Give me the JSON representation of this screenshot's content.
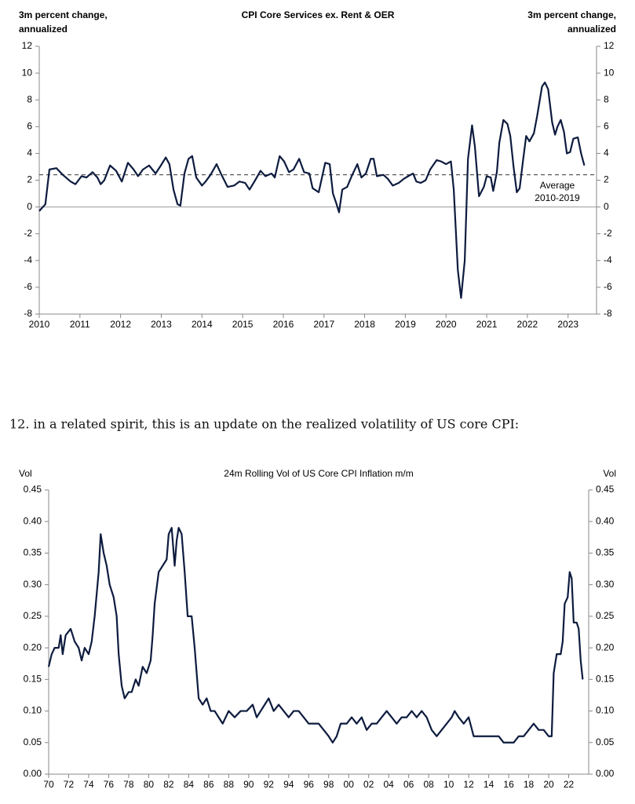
{
  "chart_data": [
    {
      "type": "line",
      "title": "CPI Core Services ex. Rent & OER",
      "ylabel": [
        "3m percent change,",
        "annualized"
      ],
      "y2label": [
        "3m percent change,",
        "annualized"
      ],
      "x": [
        2010.0,
        2010.15,
        2010.25,
        2010.42,
        2010.58,
        2010.77,
        2010.89,
        2011.04,
        2011.16,
        2011.31,
        2011.43,
        2011.51,
        2011.6,
        2011.74,
        2011.89,
        2012.03,
        2012.18,
        2012.32,
        2012.43,
        2012.55,
        2012.7,
        2012.86,
        2012.99,
        2013.11,
        2013.2,
        2013.3,
        2013.4,
        2013.47,
        2013.57,
        2013.67,
        2013.76,
        2013.86,
        2014.0,
        2014.09,
        2014.21,
        2014.36,
        2014.48,
        2014.63,
        2014.79,
        2014.92,
        2015.06,
        2015.17,
        2015.29,
        2015.44,
        2015.56,
        2015.71,
        2015.79,
        2015.91,
        2016.02,
        2016.14,
        2016.25,
        2016.39,
        2016.51,
        2016.64,
        2016.72,
        2016.87,
        2017.03,
        2017.14,
        2017.22,
        2017.3,
        2017.37,
        2017.45,
        2017.57,
        2017.68,
        2017.82,
        2017.92,
        2018.03,
        2018.15,
        2018.22,
        2018.3,
        2018.46,
        2018.57,
        2018.69,
        2018.84,
        2018.96,
        2019.07,
        2019.19,
        2019.27,
        2019.38,
        2019.5,
        2019.61,
        2019.77,
        2019.88,
        2020.0,
        2020.12,
        2020.19,
        2020.29,
        2020.37,
        2020.46,
        2020.54,
        2020.64,
        2020.71,
        2020.81,
        2020.93,
        2021.0,
        2021.1,
        2021.16,
        2021.25,
        2021.31,
        2021.41,
        2021.51,
        2021.58,
        2021.66,
        2021.74,
        2021.81,
        2021.89,
        2021.97,
        2022.05,
        2022.16,
        2022.24,
        2022.36,
        2022.43,
        2022.51,
        2022.61,
        2022.68,
        2022.74,
        2022.82,
        2022.9,
        2022.97,
        2023.05,
        2023.13,
        2023.24,
        2023.32,
        2023.4
      ],
      "values": [
        -0.3,
        0.2,
        2.8,
        2.9,
        2.4,
        1.9,
        1.7,
        2.3,
        2.2,
        2.6,
        2.2,
        1.7,
        2.0,
        3.1,
        2.7,
        1.9,
        3.3,
        2.8,
        2.3,
        2.8,
        3.1,
        2.5,
        3.1,
        3.7,
        3.2,
        1.3,
        0.2,
        0.1,
        2.5,
        3.6,
        3.8,
        2.2,
        1.6,
        1.9,
        2.4,
        3.2,
        2.4,
        1.5,
        1.6,
        1.9,
        1.8,
        1.3,
        1.9,
        2.7,
        2.3,
        2.5,
        2.2,
        3.8,
        3.4,
        2.6,
        2.8,
        3.6,
        2.6,
        2.5,
        1.4,
        1.1,
        3.3,
        3.2,
        1.0,
        0.3,
        -0.4,
        1.3,
        1.5,
        2.3,
        3.2,
        2.2,
        2.5,
        3.6,
        3.6,
        2.3,
        2.4,
        2.1,
        1.6,
        1.8,
        2.1,
        2.3,
        2.5,
        1.9,
        1.8,
        2.0,
        2.8,
        3.5,
        3.4,
        3.2,
        3.4,
        1.3,
        -4.7,
        -6.8,
        -4.0,
        3.6,
        6.1,
        4.5,
        0.8,
        1.5,
        2.3,
        2.2,
        1.2,
        2.6,
        4.8,
        6.5,
        6.2,
        5.3,
        3.0,
        1.1,
        1.4,
        3.4,
        5.3,
        4.9,
        5.5,
        6.8,
        9.0,
        9.3,
        8.8,
        6.3,
        5.4,
        6.0,
        6.5,
        5.6,
        4.0,
        4.1,
        5.1,
        5.2,
        4.0,
        3.1
      ],
      "color": "#0d1b3e",
      "xlim": [
        2010,
        2023.7
      ],
      "xticks": [
        2010,
        2011,
        2012,
        2013,
        2014,
        2015,
        2016,
        2017,
        2018,
        2019,
        2020,
        2021,
        2022,
        2023
      ],
      "ylim": [
        -8,
        12
      ],
      "yticks": [
        -8,
        -6,
        -4,
        -2,
        0,
        2,
        4,
        6,
        8,
        10,
        12
      ],
      "y2lim": [
        -8,
        12
      ],
      "y2ticks": [
        -8,
        -6,
        -4,
        -2,
        0,
        2,
        4,
        6,
        8,
        10,
        12
      ],
      "average": 2.4,
      "average_label": [
        "Average",
        "2010-2019"
      ]
    },
    {
      "type": "line",
      "title": "24m Rolling Vol of US Core CPI Inflation m/m",
      "ylabel": [
        "Vol"
      ],
      "y2label": [
        "Vol"
      ],
      "x": [
        1970.0,
        1970.3,
        1970.6,
        1971.0,
        1971.2,
        1971.4,
        1971.7,
        1972.2,
        1972.6,
        1973.0,
        1973.3,
        1973.6,
        1974.0,
        1974.3,
        1974.6,
        1975.0,
        1975.2,
        1975.5,
        1975.8,
        1976.1,
        1976.5,
        1976.8,
        1977.0,
        1977.3,
        1977.6,
        1978.0,
        1978.3,
        1978.7,
        1979.0,
        1979.4,
        1979.8,
        1980.2,
        1980.4,
        1980.6,
        1981.0,
        1981.4,
        1981.8,
        1982.0,
        1982.3,
        1982.6,
        1982.8,
        1983.0,
        1983.3,
        1983.6,
        1983.9,
        1984.3,
        1984.6,
        1985.0,
        1985.4,
        1985.8,
        1986.2,
        1986.6,
        1987.0,
        1987.4,
        1988.0,
        1988.6,
        1989.2,
        1989.8,
        1990.4,
        1990.8,
        1991.2,
        1991.6,
        1992.0,
        1992.5,
        1993.0,
        1993.5,
        1994.0,
        1994.5,
        1995.0,
        1995.5,
        1996.0,
        1996.5,
        1997.0,
        1997.5,
        1998.0,
        1998.4,
        1998.8,
        1999.2,
        1999.8,
        2000.3,
        2000.8,
        2001.3,
        2001.8,
        2002.3,
        2002.8,
        2003.3,
        2003.8,
        2004.3,
        2004.8,
        2005.3,
        2005.8,
        2006.3,
        2006.8,
        2007.3,
        2007.8,
        2008.3,
        2008.8,
        2009.3,
        2009.8,
        2010.3,
        2010.6,
        2011.0,
        2011.5,
        2012.0,
        2012.5,
        2013.0,
        2013.5,
        2014.0,
        2015.0,
        2015.5,
        2016.5,
        2017.0,
        2017.5,
        2018.0,
        2018.5,
        2019.0,
        2019.5,
        2020.0,
        2020.3,
        2020.5,
        2020.8,
        2021.2,
        2021.4,
        2021.6,
        2021.9,
        2022.1,
        2022.3,
        2022.5,
        2022.8,
        2023.0,
        2023.2,
        2023.4
      ],
      "values": [
        0.17,
        0.19,
        0.2,
        0.2,
        0.22,
        0.19,
        0.22,
        0.23,
        0.21,
        0.2,
        0.18,
        0.2,
        0.19,
        0.21,
        0.25,
        0.32,
        0.38,
        0.35,
        0.33,
        0.3,
        0.28,
        0.25,
        0.19,
        0.14,
        0.12,
        0.13,
        0.13,
        0.15,
        0.14,
        0.17,
        0.16,
        0.18,
        0.22,
        0.27,
        0.32,
        0.33,
        0.34,
        0.38,
        0.39,
        0.33,
        0.37,
        0.39,
        0.38,
        0.32,
        0.25,
        0.25,
        0.2,
        0.12,
        0.11,
        0.12,
        0.1,
        0.1,
        0.09,
        0.08,
        0.1,
        0.09,
        0.1,
        0.1,
        0.11,
        0.09,
        0.1,
        0.11,
        0.12,
        0.1,
        0.11,
        0.1,
        0.09,
        0.1,
        0.1,
        0.09,
        0.08,
        0.08,
        0.08,
        0.07,
        0.06,
        0.05,
        0.06,
        0.08,
        0.08,
        0.09,
        0.08,
        0.09,
        0.07,
        0.08,
        0.08,
        0.09,
        0.1,
        0.09,
        0.08,
        0.09,
        0.09,
        0.1,
        0.09,
        0.1,
        0.09,
        0.07,
        0.06,
        0.07,
        0.08,
        0.09,
        0.1,
        0.09,
        0.08,
        0.09,
        0.06,
        0.06,
        0.06,
        0.06,
        0.06,
        0.05,
        0.05,
        0.06,
        0.06,
        0.07,
        0.08,
        0.07,
        0.07,
        0.06,
        0.06,
        0.16,
        0.19,
        0.19,
        0.21,
        0.27,
        0.28,
        0.32,
        0.31,
        0.24,
        0.24,
        0.23,
        0.18,
        0.15
      ],
      "color": "#0d1b3e",
      "xlim": [
        1970,
        2024
      ],
      "xticks": [
        {
          "value": 1970,
          "label": "70"
        },
        {
          "value": 1972,
          "label": "72"
        },
        {
          "value": 1974,
          "label": "74"
        },
        {
          "value": 1976,
          "label": "76"
        },
        {
          "value": 1978,
          "label": "78"
        },
        {
          "value": 1980,
          "label": "80"
        },
        {
          "value": 1982,
          "label": "82"
        },
        {
          "value": 1984,
          "label": "84"
        },
        {
          "value": 1986,
          "label": "86"
        },
        {
          "value": 1988,
          "label": "88"
        },
        {
          "value": 1990,
          "label": "90"
        },
        {
          "value": 1992,
          "label": "92"
        },
        {
          "value": 1994,
          "label": "94"
        },
        {
          "value": 1996,
          "label": "96"
        },
        {
          "value": 1998,
          "label": "98"
        },
        {
          "value": 2000,
          "label": "00"
        },
        {
          "value": 2002,
          "label": "02"
        },
        {
          "value": 2004,
          "label": "04"
        },
        {
          "value": 2006,
          "label": "06"
        },
        {
          "value": 2008,
          "label": "08"
        },
        {
          "value": 2010,
          "label": "10"
        },
        {
          "value": 2012,
          "label": "12"
        },
        {
          "value": 2014,
          "label": "14"
        },
        {
          "value": 2016,
          "label": "16"
        },
        {
          "value": 2018,
          "label": "18"
        },
        {
          "value": 2020,
          "label": "20"
        },
        {
          "value": 2022,
          "label": "22"
        }
      ],
      "ylim": [
        0,
        0.45
      ],
      "yticks": [
        {
          "value": 0,
          "label": "0.00"
        },
        {
          "value": 0.05,
          "label": "0.05"
        },
        {
          "value": 0.1,
          "label": "0.10"
        },
        {
          "value": 0.15,
          "label": "0.15"
        },
        {
          "value": 0.2,
          "label": "0.20"
        },
        {
          "value": 0.25,
          "label": "0.25"
        },
        {
          "value": 0.3,
          "label": "0.30"
        },
        {
          "value": 0.35,
          "label": "0.35"
        },
        {
          "value": 0.4,
          "label": "0.40"
        },
        {
          "value": 0.45,
          "label": "0.45"
        }
      ],
      "y2lim": [
        0,
        0.45
      ],
      "y2ticks": [
        {
          "value": 0,
          "label": "0.00"
        },
        {
          "value": 0.05,
          "label": "0.05"
        },
        {
          "value": 0.1,
          "label": "0.10"
        },
        {
          "value": 0.15,
          "label": "0.15"
        },
        {
          "value": 0.2,
          "label": "0.20"
        },
        {
          "value": 0.25,
          "label": "0.25"
        },
        {
          "value": 0.3,
          "label": "0.30"
        },
        {
          "value": 0.35,
          "label": "0.35"
        },
        {
          "value": 0.4,
          "label": "0.40"
        },
        {
          "value": 0.45,
          "label": "0.45"
        }
      ]
    }
  ],
  "paragraph": "12. in a related spirit, this is an update on the realized volatility of US core CPI:"
}
